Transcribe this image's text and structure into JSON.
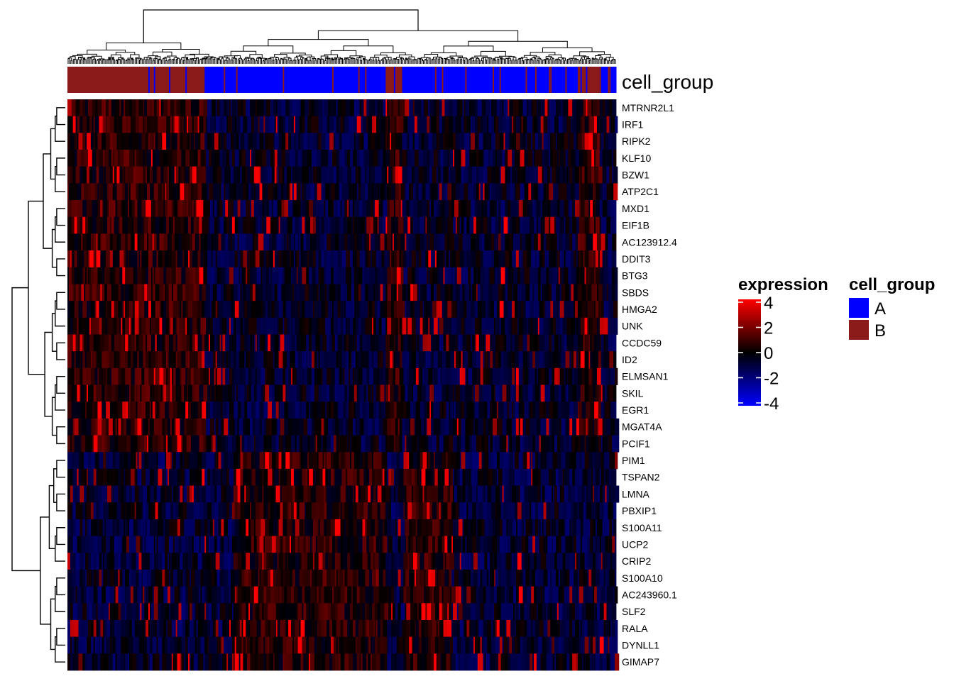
{
  "chart_data": {
    "type": "heatmap",
    "title": "",
    "row_genes": [
      "MTRNR2L1",
      "IRF1",
      "RIPK2",
      "KLF10",
      "BZW1",
      "ATP2C1",
      "MXD1",
      "EIF1B",
      "AC123912.4",
      "DDIT3",
      "BTG3",
      "SBDS",
      "HMGA2",
      "UNK",
      "CCDC59",
      "ID2",
      "ELMSAN1",
      "SKIL",
      "EGR1",
      "MGAT4A",
      "PCIF1",
      "PIM1",
      "TSPAN2",
      "LMNA",
      "PBXIP1",
      "S100A11",
      "UCP2",
      "CRIP2",
      "S100A10",
      "AC243960.1",
      "SLF2",
      "RALA",
      "DYNLL1",
      "GIMAP7"
    ],
    "row_dendrogram_leaf_order": [
      "MTRNR2L1",
      "IRF1",
      "RIPK2",
      "KLF10",
      "BZW1",
      "ATP2C1",
      "MXD1",
      "EIF1B",
      "AC123912.4",
      "DDIT3",
      "BTG3",
      "SBDS",
      "HMGA2",
      "UNK",
      "CCDC59",
      "ID2",
      "ELMSAN1",
      "SKIL",
      "EGR1",
      "MGAT4A",
      "PCIF1",
      "PIM1",
      "TSPAN2",
      "LMNA",
      "PBXIP1",
      "S100A11",
      "UCP2",
      "CRIP2",
      "S100A10",
      "AC243960.1",
      "SLF2",
      "RALA",
      "DYNLL1",
      "GIMAP7"
    ],
    "column_annotation": {
      "name": "cell_group",
      "segments": [
        {
          "group": "B",
          "from": 0.0,
          "to": 0.25
        },
        {
          "group": "A",
          "from": 0.25,
          "to": 0.58
        },
        {
          "group": "B",
          "from": 0.58,
          "to": 0.61
        },
        {
          "group": "A",
          "from": 0.61,
          "to": 0.93
        },
        {
          "group": "B",
          "from": 0.93,
          "to": 0.97
        },
        {
          "group": "A",
          "from": 0.97,
          "to": 1.0
        }
      ]
    },
    "color_scale": {
      "title": "expression",
      "ticks": [
        4,
        2,
        0,
        -2,
        -4
      ],
      "min": -4,
      "max": 4,
      "colors": {
        "low": "#0000ff",
        "mid": "#000000",
        "high": "#ff0000"
      }
    },
    "legend_groups": [
      {
        "label": "A",
        "color": "#0000ff"
      },
      {
        "label": "B",
        "color": "#8b1a1a"
      }
    ]
  }
}
